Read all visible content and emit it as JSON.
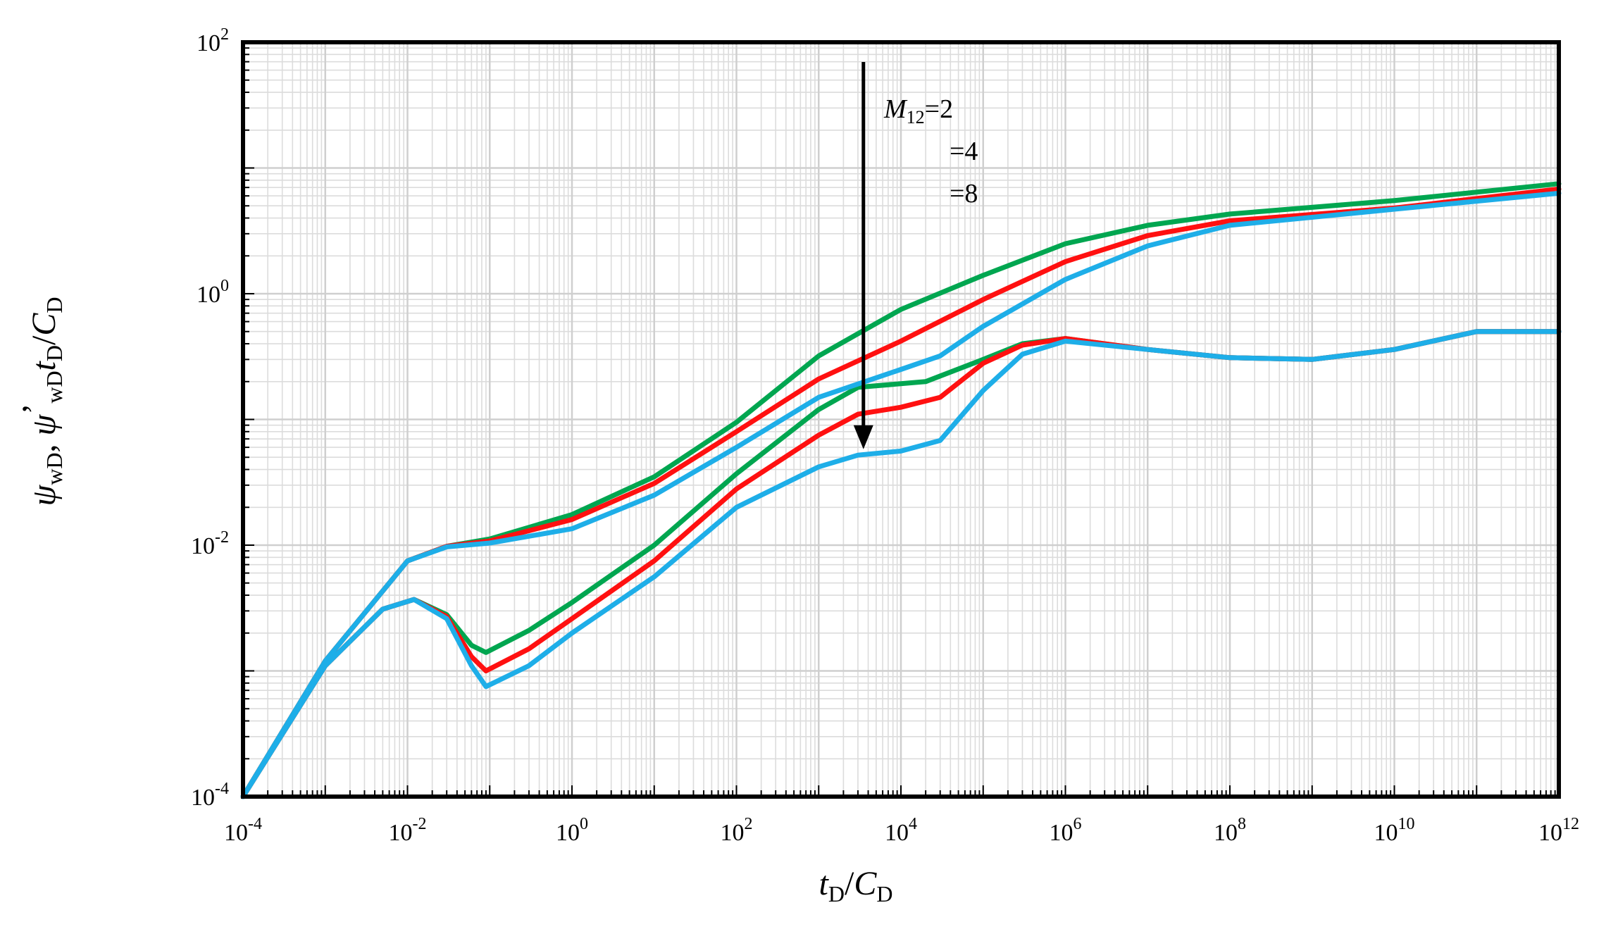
{
  "chart_data": {
    "type": "line",
    "xscale": "log",
    "yscale": "log",
    "xlim": [
      0.0001,
      1000000000000.0
    ],
    "ylim": [
      0.0001,
      100
    ],
    "x_tick_labels": [
      {
        "base": "10",
        "exp": "-4"
      },
      {
        "base": "10",
        "exp": "-2"
      },
      {
        "base": "10",
        "exp": "0"
      },
      {
        "base": "10",
        "exp": "2"
      },
      {
        "base": "10",
        "exp": "4"
      },
      {
        "base": "10",
        "exp": "6"
      },
      {
        "base": "10",
        "exp": "8"
      },
      {
        "base": "10",
        "exp": "10"
      },
      {
        "base": "10",
        "exp": "12"
      }
    ],
    "y_tick_labels": [
      {
        "base": "10",
        "exp": "-4"
      },
      {
        "base": "10",
        "exp": "-2"
      },
      {
        "base": "10",
        "exp": "0"
      },
      {
        "base": "10",
        "exp": "2"
      }
    ],
    "xlabel": {
      "t": "t",
      "t_sub": "D",
      "slash": "/",
      "c": "C",
      "c_sub": "D"
    },
    "ylabel": {
      "psi": "ψ",
      "psi_sub": "wD",
      "comma": ", ",
      "psi2": "ψ",
      "prime": "’",
      "psi2_sub": "wD",
      "t": "t",
      "t_sub": "D",
      "slash": "/",
      "c": "C",
      "c_sub": "D"
    },
    "grid": true,
    "annotation": {
      "m": "M",
      "m_sub": "12",
      "labels": [
        "=2",
        "=4",
        "=8"
      ],
      "arrow": "down"
    },
    "series": [
      {
        "name": "pressure M12=2",
        "color": "#00A650",
        "x": [
          0.0001,
          0.001,
          0.01,
          0.03,
          0.1,
          1,
          10,
          100,
          1000,
          10000,
          100000,
          1000000,
          10000000,
          100000000,
          10000000000.0,
          1000000000000.0
        ],
        "y": [
          0.0001,
          0.0012,
          0.0075,
          0.0098,
          0.0112,
          0.0175,
          0.035,
          0.095,
          0.32,
          0.75,
          1.4,
          2.5,
          3.5,
          4.3,
          5.5,
          7.5
        ]
      },
      {
        "name": "derivative M12=2",
        "color": "#00A650",
        "x": [
          0.0001,
          0.001,
          0.005,
          0.012,
          0.03,
          0.06,
          0.09,
          0.3,
          1,
          10,
          100,
          1000,
          3000,
          20000,
          100000,
          300000,
          1000000,
          10000000,
          100000000,
          1000000000,
          10000000000.0,
          100000000000.0,
          1000000000000.0
        ],
        "y": [
          0.0001,
          0.0011,
          0.0031,
          0.0037,
          0.0028,
          0.0016,
          0.0014,
          0.0021,
          0.0035,
          0.01,
          0.037,
          0.12,
          0.18,
          0.2,
          0.3,
          0.4,
          0.44,
          0.36,
          0.31,
          0.3,
          0.36,
          0.5,
          0.5
        ]
      },
      {
        "name": "pressure M12=4",
        "color": "#FF1010",
        "x": [
          0.0001,
          0.001,
          0.01,
          0.03,
          0.1,
          1,
          10,
          100,
          1000,
          10000,
          100000,
          1000000,
          10000000,
          100000000,
          10000000000.0,
          1000000000000.0
        ],
        "y": [
          0.0001,
          0.0012,
          0.0075,
          0.0098,
          0.0108,
          0.016,
          0.031,
          0.08,
          0.21,
          0.42,
          0.9,
          1.8,
          2.9,
          3.8,
          4.8,
          6.8
        ]
      },
      {
        "name": "derivative M12=4",
        "color": "#FF1010",
        "x": [
          0.0001,
          0.001,
          0.005,
          0.012,
          0.03,
          0.06,
          0.09,
          0.3,
          1,
          10,
          100,
          1000,
          3000,
          10000,
          30000,
          100000,
          300000,
          1000000,
          10000000,
          100000000,
          1000000000,
          10000000000.0,
          100000000000.0,
          1000000000000.0
        ],
        "y": [
          0.0001,
          0.0011,
          0.0031,
          0.0037,
          0.0027,
          0.0013,
          0.001,
          0.0015,
          0.0026,
          0.0075,
          0.028,
          0.075,
          0.11,
          0.125,
          0.15,
          0.28,
          0.39,
          0.44,
          0.36,
          0.31,
          0.3,
          0.36,
          0.5,
          0.5
        ]
      },
      {
        "name": "pressure M12=8",
        "color": "#1EAEE8",
        "x": [
          0.0001,
          0.001,
          0.01,
          0.03,
          0.1,
          1,
          10,
          100,
          1000,
          10000,
          30000,
          100000,
          1000000,
          10000000,
          100000000,
          10000000000.0,
          1000000000000.0
        ],
        "y": [
          0.0001,
          0.0012,
          0.0075,
          0.0097,
          0.0104,
          0.0135,
          0.025,
          0.06,
          0.15,
          0.25,
          0.32,
          0.55,
          1.3,
          2.4,
          3.5,
          4.7,
          6.3
        ]
      },
      {
        "name": "derivative M12=8",
        "color": "#1EAEE8",
        "x": [
          0.0001,
          0.001,
          0.005,
          0.012,
          0.03,
          0.06,
          0.09,
          0.3,
          1,
          10,
          100,
          1000,
          3000,
          10000,
          30000,
          100000,
          300000,
          1000000,
          10000000,
          100000000,
          1000000000,
          10000000000.0,
          100000000000.0,
          1000000000000.0
        ],
        "y": [
          0.0001,
          0.0011,
          0.0031,
          0.0037,
          0.0026,
          0.0011,
          0.00075,
          0.0011,
          0.002,
          0.0056,
          0.02,
          0.042,
          0.052,
          0.056,
          0.068,
          0.17,
          0.33,
          0.42,
          0.36,
          0.31,
          0.3,
          0.36,
          0.5,
          0.5
        ]
      }
    ]
  }
}
